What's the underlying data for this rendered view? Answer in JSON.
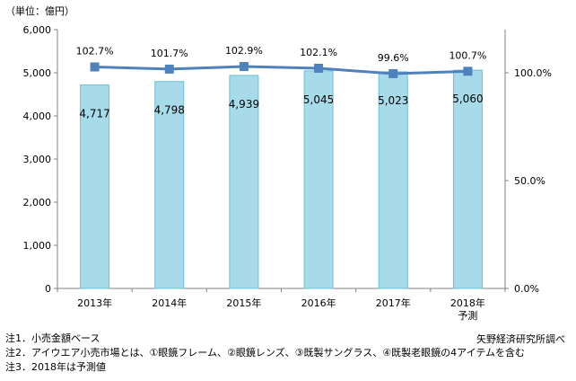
{
  "chart_data": {
    "type": "bar",
    "unit_label": "（単位：億円）",
    "categories": [
      "2013年",
      "2014年",
      "2015年",
      "2016年",
      "2017年",
      "2018年"
    ],
    "category_sublabels": [
      "",
      "",
      "",
      "",
      "",
      "予測"
    ],
    "series": [
      {
        "type": "bar",
        "axis": "left",
        "values": [
          4717,
          4798,
          4939,
          5045,
          5023,
          5060
        ],
        "labels": [
          "4,717",
          "4,798",
          "4,939",
          "5,045",
          "5,023",
          "5,060"
        ]
      },
      {
        "type": "line",
        "axis": "right",
        "values": [
          102.7,
          101.7,
          102.9,
          102.1,
          99.6,
          100.7
        ],
        "labels": [
          "102.7%",
          "101.7%",
          "102.9%",
          "102.1%",
          "99.6%",
          "100.7%"
        ]
      }
    ],
    "ylim": [
      0,
      6000
    ],
    "yticks": [
      "0",
      "1,000",
      "2,000",
      "3,000",
      "4,000",
      "5,000",
      "6,000"
    ],
    "y2lim": [
      0,
      120
    ],
    "y2ticks": [
      "0.0%",
      "50.0%",
      "100.0%"
    ],
    "y2tick_values": [
      0,
      50,
      100
    ],
    "grid": false,
    "colors": {
      "bar_fill": "#a7dbe9",
      "bar_stroke": "#6cc0d6",
      "line": "#4f81bd",
      "axis": "#808080"
    }
  },
  "notes": [
    "注1．小売金額ベース",
    "注2．アイウエア小売市場とは、①眼鏡フレーム、②眼鏡レンズ、③既製サングラス、④既製老眼鏡の4アイテムを含む",
    "注3．2018年は予測値"
  ],
  "source": "矢野経済研究所調べ"
}
